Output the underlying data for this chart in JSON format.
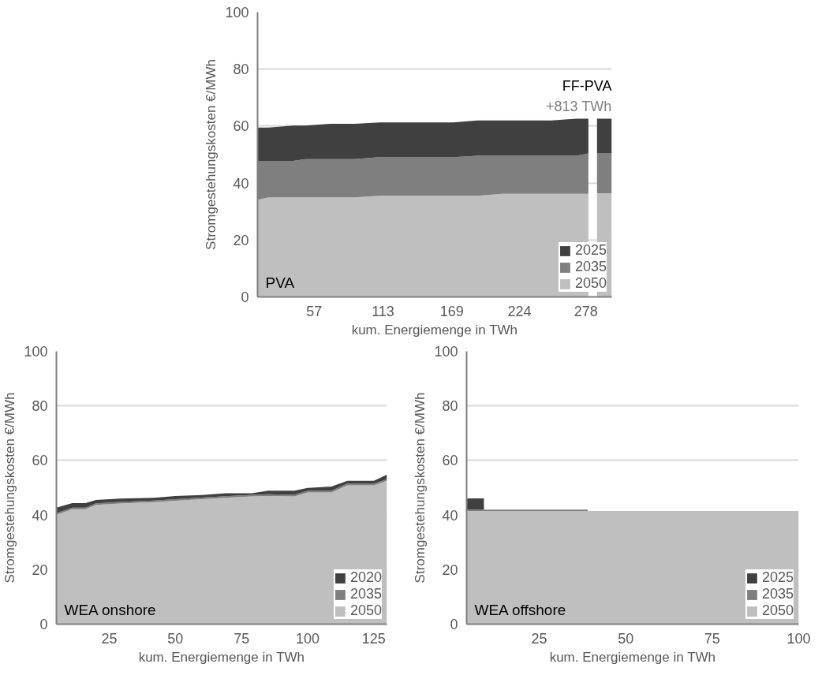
{
  "chart_data": [
    {
      "type": "area",
      "stacked": true,
      "xlabel": "kum. Energiemenge in TWh",
      "ylabel": "Stromgestehungskosten €/MWh",
      "x": [
        11,
        20,
        40,
        50,
        70,
        90,
        110,
        130,
        150,
        170,
        190,
        210,
        230,
        250,
        270,
        280,
        284,
        287,
        299
      ],
      "xlim": [
        11,
        299
      ],
      "xticks": [
        57,
        113,
        169,
        224,
        278
      ],
      "ylim": [
        0,
        100
      ],
      "yticks": [
        0,
        20,
        40,
        60,
        80,
        100
      ],
      "series": [
        {
          "name": "2050",
          "color": "#bfbfbf",
          "values": [
            34.1,
            35,
            35,
            35,
            35,
            35,
            35.5,
            35.5,
            35.5,
            35.5,
            35.5,
            36.2,
            36.2,
            36.2,
            36.2,
            36.2,
            null,
            36.4,
            36.4
          ]
        },
        {
          "name": "2035",
          "color": "#7f7f7f",
          "values": [
            13.7,
            12.8,
            12.8,
            13.4,
            13.4,
            13.4,
            13.6,
            13.6,
            13.6,
            13.6,
            14.1,
            13.4,
            13.4,
            13.4,
            13.4,
            14.2,
            null,
            14,
            14
          ]
        },
        {
          "name": "2025",
          "color": "#404040",
          "values": [
            11.7,
            11.7,
            12.4,
            11.8,
            12.4,
            12.4,
            12.2,
            12.2,
            12.2,
            12.2,
            12.4,
            12.4,
            12.4,
            12.4,
            13,
            12.2,
            null,
            12.2,
            12.2
          ]
        }
      ],
      "annotations": [
        "PVA",
        {
          "text": "FF-PVA",
          "x": 299,
          "y": 62.6
        },
        {
          "text": "+813 TWh",
          "x": 299,
          "y": 62.6
        }
      ],
      "grid": "y",
      "legend": "bottom right"
    },
    {
      "type": "area",
      "stacked": true,
      "xlabel": "kum. Energiemenge in TWh",
      "ylabel": "Stromgestehungskosten €/MWh",
      "x": [
        5,
        11,
        16,
        20,
        29,
        42,
        50,
        60,
        69,
        79,
        85,
        95,
        100,
        109,
        115,
        125,
        130
      ],
      "xlim": [
        5,
        130
      ],
      "xticks": [
        25,
        50,
        75,
        100,
        125
      ],
      "ylim": [
        0,
        100
      ],
      "yticks": [
        0,
        20,
        40,
        60,
        80,
        100
      ],
      "series": [
        {
          "name": "2050",
          "color": "#bfbfbf",
          "values": [
            40.1,
            42.1,
            42.1,
            43.7,
            44.2,
            44.7,
            45.2,
            45.8,
            46.3,
            46.8,
            47,
            46.8,
            48.3,
            48.3,
            50.9,
            50.9,
            52.5
          ]
        },
        {
          "name": "2035",
          "color": "#7f7f7f",
          "values": [
            0.6,
            0.6,
            0.6,
            0.6,
            0.6,
            0.6,
            0.6,
            0.6,
            0.6,
            0.6,
            0.6,
            0.6,
            0.6,
            0.6,
            0.6,
            0.6,
            0.6
          ]
        },
        {
          "name": "2020",
          "color": "#404040",
          "values": [
            2.0,
            1.7,
            1.7,
            1.2,
            1.2,
            1.0,
            1.2,
            0.9,
            1.1,
            0.6,
            1.3,
            1.5,
            1.0,
            1.5,
            1.0,
            1.0,
            1.7
          ]
        }
      ],
      "annotations": [
        "WEA onshore"
      ],
      "grid": "y",
      "legend": "bottom right"
    },
    {
      "type": "area",
      "stacked": true,
      "xlabel": "kum. Energiemenge in TWh",
      "ylabel": "Stromgestehungskosten €/MWh",
      "x": [
        4,
        9,
        9,
        39,
        39,
        100
      ],
      "xlim": [
        4,
        100
      ],
      "xticks": [
        25,
        50,
        75,
        100
      ],
      "ylim": [
        0,
        100
      ],
      "yticks": [
        0,
        20,
        40,
        60,
        80,
        100
      ],
      "series": [
        {
          "name": "2050",
          "color": "#bfbfbf",
          "values": [
            41.5,
            41.5,
            41.5,
            41.5,
            41.5,
            41.5
          ]
        },
        {
          "name": "2035",
          "color": "#7f7f7f",
          "values": [
            0.5,
            0.5,
            0.5,
            0.5,
            0,
            0
          ]
        },
        {
          "name": "2025",
          "color": "#404040",
          "values": [
            4.1,
            4.1,
            0,
            0,
            0,
            0
          ]
        }
      ],
      "annotations": [
        "WEA offshore"
      ],
      "grid": "y",
      "legend": "bottom right"
    }
  ]
}
